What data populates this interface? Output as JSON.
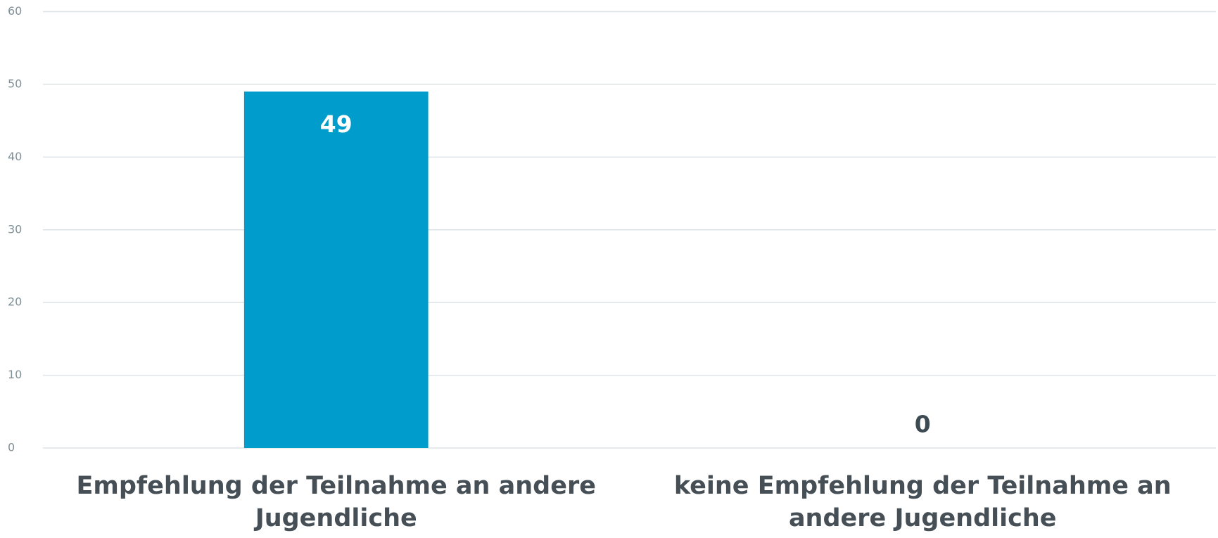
{
  "chart_data": {
    "type": "bar",
    "categories": [
      "Empfehlung der Teilnahme an andere Jugendliche",
      "keine Empfehlung der Teilnahme an andere Jugendliche"
    ],
    "values": [
      49,
      0
    ],
    "color": "#009dcc",
    "ylim": [
      0,
      60
    ],
    "yticks": [
      0,
      10,
      20,
      30,
      40,
      50,
      60
    ],
    "grid": true
  }
}
